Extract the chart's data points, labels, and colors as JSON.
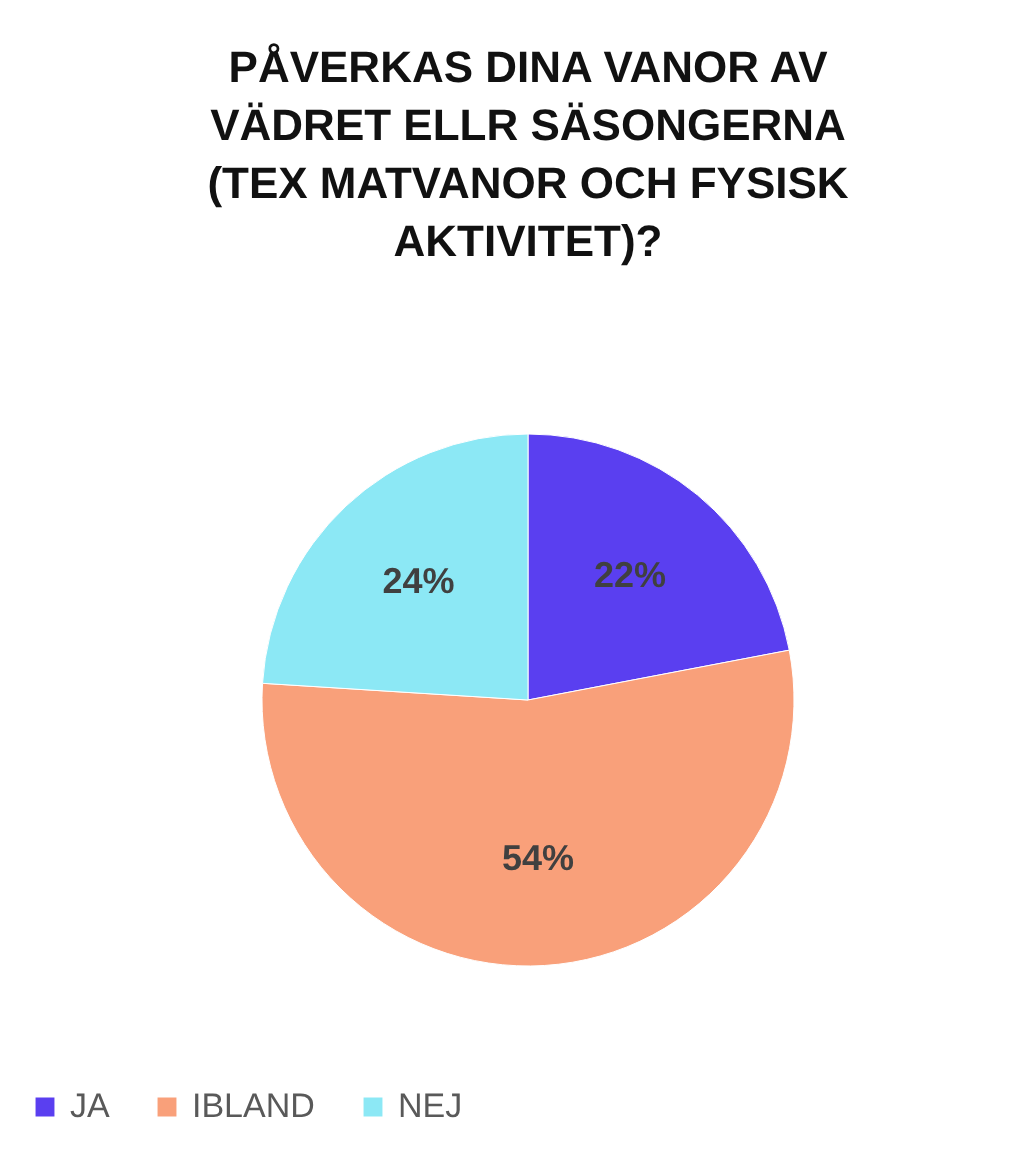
{
  "chart_data": {
    "type": "pie",
    "title": "PÅVERKAS DINA VANOR AV VÄDRET ELLR SÄSONGERNA (TEX MATVANOR OCH FYSISK AKTIVITET)?",
    "categories": [
      "JA",
      "IBLAND",
      "NEJ"
    ],
    "values": [
      22,
      54,
      24
    ],
    "colors": [
      "#5a3ff0",
      "#f9a07a",
      "#8ce8f5"
    ],
    "value_labels": [
      "22%",
      "54%",
      "24%"
    ],
    "legend": "bottom"
  }
}
